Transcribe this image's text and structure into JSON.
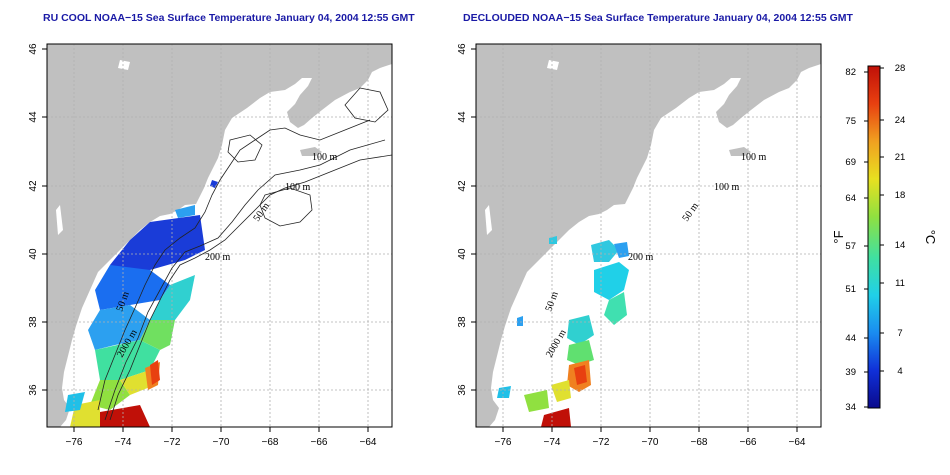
{
  "panels": [
    {
      "id": "left",
      "title": "RU COOL NOAA−15 Sea Surface Temperature January 04, 2004 12:55 GMT",
      "contour_labels": [
        "100 m",
        "100 m",
        "50 m",
        "200 m",
        "50 m",
        "2000 m"
      ]
    },
    {
      "id": "right",
      "title": "DECLOUDED NOAA−15 Sea Surface Temperature January 04, 2004 12:55 GMT",
      "contour_labels": [
        "100 m",
        "100 m",
        "50 m",
        "200 m",
        "50 m",
        "2000 m"
      ]
    }
  ],
  "axes": {
    "x_ticks": [
      "−76",
      "−74",
      "−72",
      "−70",
      "−68",
      "−66",
      "−64"
    ],
    "y_ticks": [
      "36",
      "38",
      "40",
      "42",
      "44",
      "46"
    ],
    "lon_range": [
      -77.2,
      -63.0
    ],
    "lat_range": [
      35.0,
      46.0
    ]
  },
  "colorbar": {
    "left_unit": "°F",
    "right_unit": "°C",
    "fahrenheit_ticks": [
      "82",
      "75",
      "69",
      "64",
      "57",
      "51",
      "44",
      "39",
      "34"
    ],
    "celsius_ticks": [
      "28",
      "24",
      "21",
      "18",
      "14",
      "11",
      "7",
      "4"
    ],
    "range_c": [
      1,
      28
    ],
    "colors": [
      "#0a0a8c",
      "#1030d8",
      "#1a8cf0",
      "#20d0e8",
      "#40e0a0",
      "#90e040",
      "#e8e020",
      "#f0a020",
      "#e84010",
      "#c01008"
    ]
  },
  "colors": {
    "land": "#c0c0c0",
    "title": "#1a1aa6",
    "grid": "#b0b0b0"
  }
}
